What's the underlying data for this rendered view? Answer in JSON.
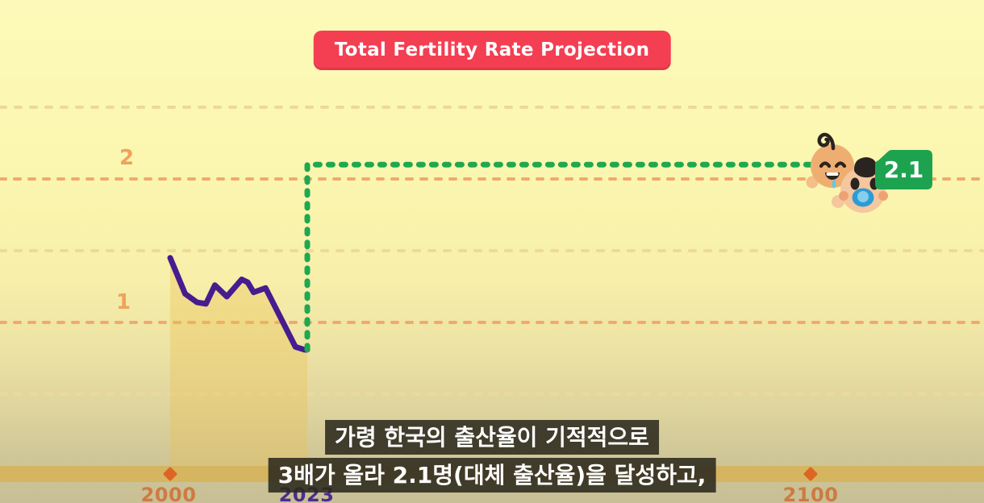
{
  "title_banner": {
    "label": "Total Fertility Rate Projection",
    "bg_color": "#F43E52",
    "text_color": "#FFFFFF"
  },
  "chart_data": {
    "type": "line",
    "title": "Total Fertility Rate Projection",
    "xlabel": "",
    "ylabel": "",
    "ylim": [
      0,
      2.6
    ],
    "grid": "horizontal-dashed",
    "x_axis": {
      "axis_bar_color": "#D5B560",
      "ticks": [
        {
          "year": 2000,
          "label": "2000",
          "marker_color": "#DD6524",
          "label_color": "#CD7B41"
        },
        {
          "year": 2023,
          "label": "2023",
          "marker_color": "#42297A",
          "label_color": "#4A2F8C"
        },
        {
          "year": 2100,
          "label": "2100",
          "marker_color": "#DD6524",
          "label_color": "#CD7B41"
        }
      ]
    },
    "y_axis": {
      "ticks": [
        {
          "value": 2,
          "label": "2"
        },
        {
          "value": 1,
          "label": "1"
        }
      ],
      "minor_gridlines": [
        2.5,
        1.5,
        0.5
      ],
      "label_color": "#EFA25B",
      "major_grid_color": "#F3A86C",
      "minor_grid_color": "#F0D79E"
    },
    "series": [
      {
        "name": "historical-fertility-rate",
        "color": "#471C8F",
        "line_style": "solid",
        "area_fill": "rgba(235,193,80,0.35)",
        "points": [
          [
            2000,
            1.45
          ],
          [
            2002.5,
            1.2
          ],
          [
            2004.5,
            1.14
          ],
          [
            2006,
            1.13
          ],
          [
            2007.5,
            1.26
          ],
          [
            2009.5,
            1.18
          ],
          [
            2012,
            1.3
          ],
          [
            2013,
            1.28
          ],
          [
            2014,
            1.21
          ],
          [
            2016,
            1.24
          ],
          [
            2021,
            0.83
          ],
          [
            2022.5,
            0.81
          ],
          [
            2023,
            0.81
          ]
        ]
      },
      {
        "name": "projection-to-replacement-rate",
        "color": "#1FA84F",
        "line_style": "dotted",
        "points": [
          [
            2023,
            0.81
          ],
          [
            2023,
            2.1
          ],
          [
            2100,
            2.1
          ]
        ]
      }
    ],
    "annotation": {
      "value_label": "2.1",
      "tag_color": "#1DA34F",
      "text_color": "#FFFFFF"
    }
  },
  "icons": {
    "baby_left": "baby-face-curl-drool-icon",
    "baby_right": "baby-face-pacifier-icon"
  },
  "subtitles": {
    "line1": "가령 한국의 출산율이 기적적으로",
    "line2": "3배가 올라 2.1명(대체 출산율)을 달성하고,"
  }
}
